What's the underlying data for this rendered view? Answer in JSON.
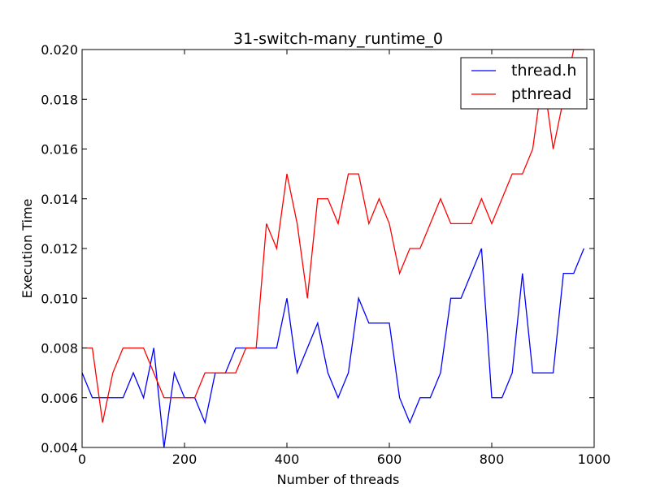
{
  "chart_data": {
    "type": "line",
    "title": "31-switch-many_runtime_0",
    "xlabel": "Number of threads",
    "ylabel": "Execution Time",
    "xlim": [
      0,
      1000
    ],
    "ylim": [
      0.004,
      0.02
    ],
    "xticks": [
      0,
      200,
      400,
      600,
      800,
      1000
    ],
    "yticks": [
      0.004,
      0.006,
      0.008,
      0.01,
      0.012,
      0.014,
      0.016,
      0.018,
      0.02
    ],
    "xtick_labels": [
      "0",
      "200",
      "400",
      "600",
      "800",
      "1000"
    ],
    "ytick_labels": [
      "0.004",
      "0.006",
      "0.008",
      "0.010",
      "0.012",
      "0.014",
      "0.016",
      "0.018",
      "0.020"
    ],
    "legend_position": "top-right",
    "grid": false,
    "x": [
      0,
      20,
      40,
      60,
      80,
      100,
      120,
      140,
      160,
      180,
      200,
      220,
      240,
      260,
      280,
      300,
      320,
      340,
      360,
      380,
      400,
      420,
      440,
      460,
      480,
      500,
      520,
      540,
      560,
      580,
      600,
      620,
      640,
      660,
      680,
      700,
      720,
      740,
      760,
      780,
      800,
      820,
      840,
      860,
      880,
      900,
      920,
      940,
      960,
      980
    ],
    "series": [
      {
        "name": "thread.h",
        "color": "#0000ff",
        "values": [
          0.007,
          0.006,
          0.006,
          0.006,
          0.006,
          0.007,
          0.006,
          0.008,
          0.004,
          0.007,
          0.006,
          0.006,
          0.005,
          0.007,
          0.007,
          0.008,
          0.008,
          0.008,
          0.008,
          0.008,
          0.01,
          0.007,
          0.008,
          0.009,
          0.007,
          0.006,
          0.007,
          0.01,
          0.009,
          0.009,
          0.009,
          0.006,
          0.005,
          0.006,
          0.006,
          0.007,
          0.01,
          0.01,
          0.011,
          0.012,
          0.006,
          0.006,
          0.007,
          0.011,
          0.007,
          0.007,
          0.007,
          0.011,
          0.011,
          0.012
        ]
      },
      {
        "name": "pthread",
        "color": "#ff0000",
        "values": [
          0.008,
          0.008,
          0.005,
          0.007,
          0.008,
          0.008,
          0.008,
          0.007,
          0.006,
          0.006,
          0.006,
          0.006,
          0.007,
          0.007,
          0.007,
          0.007,
          0.008,
          0.008,
          0.013,
          0.012,
          0.015,
          0.013,
          0.01,
          0.014,
          0.014,
          0.013,
          0.015,
          0.015,
          0.013,
          0.014,
          0.013,
          0.011,
          0.012,
          0.012,
          0.013,
          0.014,
          0.013,
          0.013,
          0.013,
          0.014,
          0.013,
          0.014,
          0.015,
          0.015,
          0.016,
          0.019,
          0.016,
          0.018,
          0.02,
          0.02
        ]
      }
    ]
  }
}
